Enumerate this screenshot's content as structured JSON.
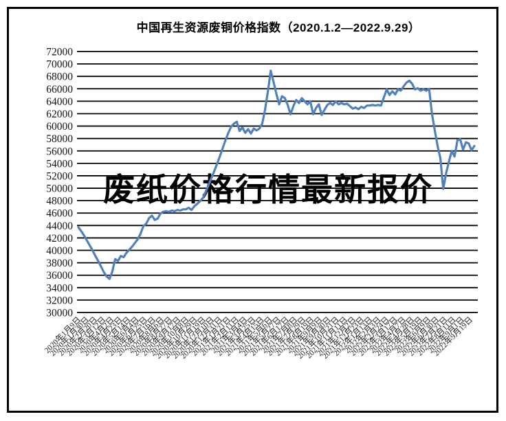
{
  "page": {
    "background_color": "#ffffff",
    "frame_border_color": "#000000"
  },
  "watermark": {
    "text": "废纸价格行情最新报价"
  },
  "chart_data": {
    "type": "line",
    "title": "中国再生资源废铜价格指数（2020.1.2—2022.9.29）",
    "xlabel": "",
    "ylabel": "",
    "ylim": [
      30000,
      72000
    ],
    "ytick_step": 2000,
    "grid": "horizontal",
    "legend_position": "none",
    "line_color": "#4f81bd",
    "grid_color": "#000000",
    "x_labels": [
      "2020年1月9日",
      "2020年1月30日",
      "2020年2月20日",
      "2020年3月12日",
      "2020年4月2日",
      "2020年4月23日",
      "2020年5月14日",
      "2020年6月4日",
      "2020年6月25日",
      "2020年7月16日",
      "2020年8月6日",
      "2020年8月27日",
      "2020年9月17日",
      "2020年10月8日",
      "2020年10月29日",
      "2020年11月19日",
      "2020年12月10日",
      "2020年12月31日",
      "2021年1月21日",
      "2021年2月11日",
      "2021年3月4日",
      "2021年3月25日",
      "2021年4月15日",
      "2021年5月6日",
      "2021年5月27日",
      "2021年6月17日",
      "2021年7月8日",
      "2021年7月29日",
      "2021年8月19日",
      "2021年9月9日",
      "2021年9月30日",
      "2021年10月21日",
      "2021年11月11日",
      "2021年12月2日",
      "2021年12月23日",
      "2022年1月13日",
      "2022年2月3日",
      "2022年2月24日",
      "2022年3月17日",
      "2022年4月7日",
      "2022年4月28日",
      "2022年5月19日",
      "2022年6月9日",
      "2022年6月30日",
      "2022年7月21日",
      "2022年8月11日",
      "2022年9月1日",
      "2022年9月19日"
    ],
    "series": [
      {
        "name": "废铜价格指数",
        "values": [
          43700,
          43100,
          42400,
          41600,
          40800,
          40000,
          39100,
          38300,
          37400,
          36500,
          35800,
          35400,
          36600,
          38600,
          38300,
          39100,
          38900,
          39600,
          40100,
          40600,
          41200,
          41800,
          42700,
          43900,
          44300,
          45200,
          45600,
          44900,
          45100,
          45900,
          46200,
          46300,
          46200,
          46400,
          46300,
          46500,
          46400,
          46600,
          46600,
          46850,
          46500,
          47100,
          47500,
          47900,
          48400,
          49400,
          50500,
          51600,
          52700,
          53900,
          55100,
          56400,
          57700,
          58900,
          59900,
          60400,
          60700,
          59200,
          59800,
          58900,
          59500,
          58800,
          59600,
          59300,
          59600,
          60400,
          62600,
          65600,
          68900,
          67100,
          65200,
          63500,
          64800,
          64500,
          63400,
          61900,
          63200,
          64200,
          63700,
          64500,
          64000,
          63500,
          64000,
          61900,
          62900,
          63500,
          61800,
          62600,
          63400,
          63700,
          63400,
          64000,
          63500,
          63700,
          63500,
          63600,
          63200,
          62800,
          63000,
          62700,
          63100,
          62900,
          63300,
          63300,
          63400,
          63300,
          63400,
          63300,
          64600,
          65900,
          65000,
          65600,
          65100,
          65900,
          65700,
          66400,
          67000,
          67300,
          66800,
          65900,
          66100,
          65700,
          65900,
          65700,
          66000,
          62000,
          59300,
          56800,
          54800,
          49900,
          52400,
          54300,
          56000,
          55100,
          57700,
          57900,
          56200,
          57400,
          57200,
          56100,
          56800
        ]
      }
    ]
  }
}
